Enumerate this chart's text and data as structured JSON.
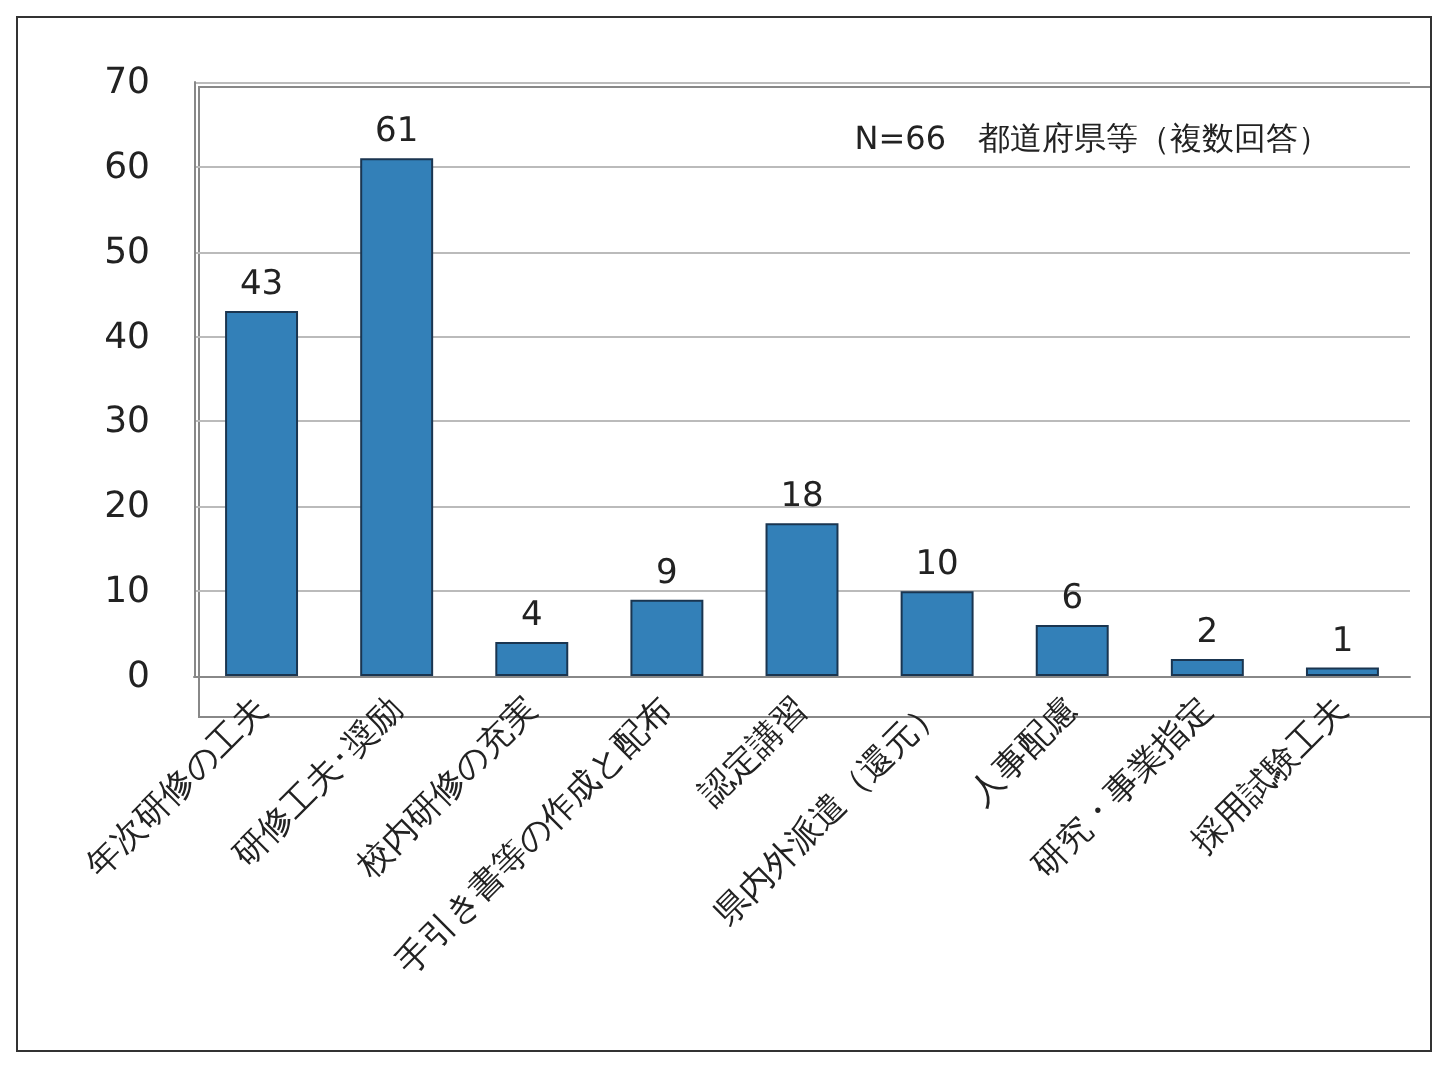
{
  "chart_data": {
    "type": "bar",
    "categories": [
      "年次研修の工夫",
      "研修工夫･奨励",
      "校内研修の充実",
      "手引き書等の作成と配布",
      "認定講習",
      "県内外派遣（還元）",
      "人事配慮",
      "研究・事業指定",
      "採用試験工夫"
    ],
    "values": [
      43,
      61,
      4,
      9,
      18,
      10,
      6,
      2,
      1
    ],
    "color": "#3380b8",
    "ylim": [
      0,
      70
    ],
    "yticks": [
      0,
      10,
      20,
      30,
      40,
      50,
      60,
      70
    ],
    "grid": "y",
    "data_labels": true,
    "annotations": [
      "N=66　都道府県等（複数回答）"
    ]
  }
}
